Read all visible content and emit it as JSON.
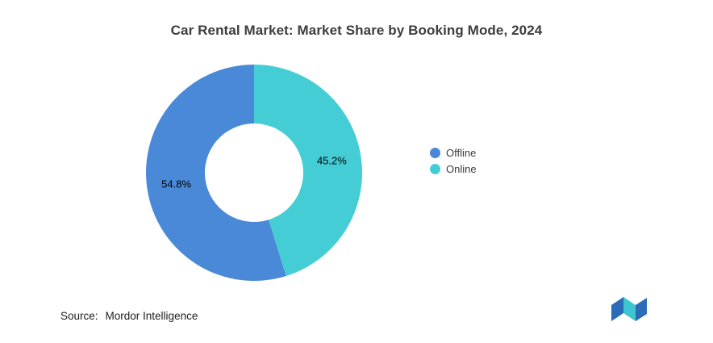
{
  "title": "Car Rental Market: Market Share by Booking Mode, 2024",
  "source": {
    "label": "Source:",
    "value": "Mordor Intelligence"
  },
  "chart_data": {
    "type": "pie",
    "subtype": "donut",
    "title": "Car Rental Market: Market Share by Booking Mode, 2024",
    "slices": [
      {
        "label": "Offline",
        "value": 54.8,
        "display": "54.8%",
        "color": "#4A89D8"
      },
      {
        "label": "Online",
        "value": 45.2,
        "display": "45.2%",
        "color": "#45CDD6"
      }
    ],
    "start_angle_deg": 0,
    "direction": "counterclockwise_for_first_slice",
    "inner_radius_ratio": 0.455,
    "legend_position": "right",
    "labels_inside": true
  },
  "logo": {
    "name": "mordor-intelligence-logo",
    "blue": "#2B6CB8",
    "teal": "#3EC6D0"
  }
}
